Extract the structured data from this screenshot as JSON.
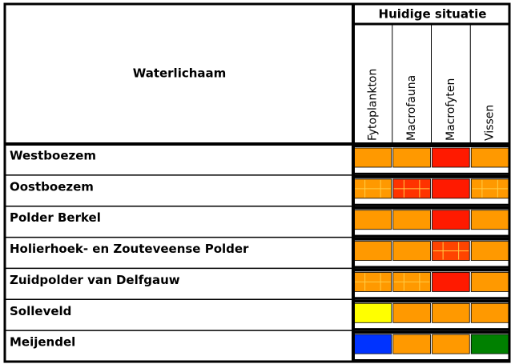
{
  "table": {
    "header": {
      "row_label": "Waterlichaam",
      "group": "Huidige situatie",
      "columns": [
        "Fytoplankton",
        "Macrofauna",
        "Macrofyten",
        "Vissen"
      ]
    },
    "rows": [
      {
        "name": "Westboezem",
        "cells": [
          {
            "color": "#ff9900",
            "hatched": false
          },
          {
            "color": "#ff9900",
            "hatched": false
          },
          {
            "color": "#ff1a00",
            "hatched": false
          },
          {
            "color": "#ff9900",
            "hatched": false
          }
        ]
      },
      {
        "name": "Oostboezem",
        "cells": [
          {
            "color": "#ff9900",
            "hatched": true
          },
          {
            "color": "#ff3300",
            "hatched": true
          },
          {
            "color": "#ff1a00",
            "hatched": false
          },
          {
            "color": "#ff9900",
            "hatched": true
          }
        ]
      },
      {
        "name": "Polder Berkel",
        "cells": [
          {
            "color": "#ff9900",
            "hatched": false
          },
          {
            "color": "#ff9900",
            "hatched": false
          },
          {
            "color": "#ff1a00",
            "hatched": false
          },
          {
            "color": "#ff9900",
            "hatched": false
          }
        ]
      },
      {
        "name": "Holierhoek- en Zouteveense Polder",
        "cells": [
          {
            "color": "#ff9900",
            "hatched": false
          },
          {
            "color": "#ff9900",
            "hatched": false
          },
          {
            "color": "#ff4400",
            "hatched": true
          },
          {
            "color": "#ff9900",
            "hatched": false
          }
        ]
      },
      {
        "name": "Zuidpolder van Delfgauw",
        "cells": [
          {
            "color": "#ff9900",
            "hatched": true
          },
          {
            "color": "#ff9900",
            "hatched": true
          },
          {
            "color": "#ff1a00",
            "hatched": false
          },
          {
            "color": "#ff9900",
            "hatched": false
          }
        ]
      },
      {
        "name": "Solleveld",
        "cells": [
          {
            "color": "#ffff00",
            "hatched": false
          },
          {
            "color": "#ff9900",
            "hatched": false
          },
          {
            "color": "#ff9900",
            "hatched": false
          },
          {
            "color": "#ff9900",
            "hatched": false
          }
        ]
      },
      {
        "name": "Meijendel",
        "cells": [
          {
            "color": "#0033ff",
            "hatched": false
          },
          {
            "color": "#ff9900",
            "hatched": false
          },
          {
            "color": "#ff9900",
            "hatched": false
          },
          {
            "color": "#008000",
            "hatched": false
          }
        ]
      }
    ]
  }
}
